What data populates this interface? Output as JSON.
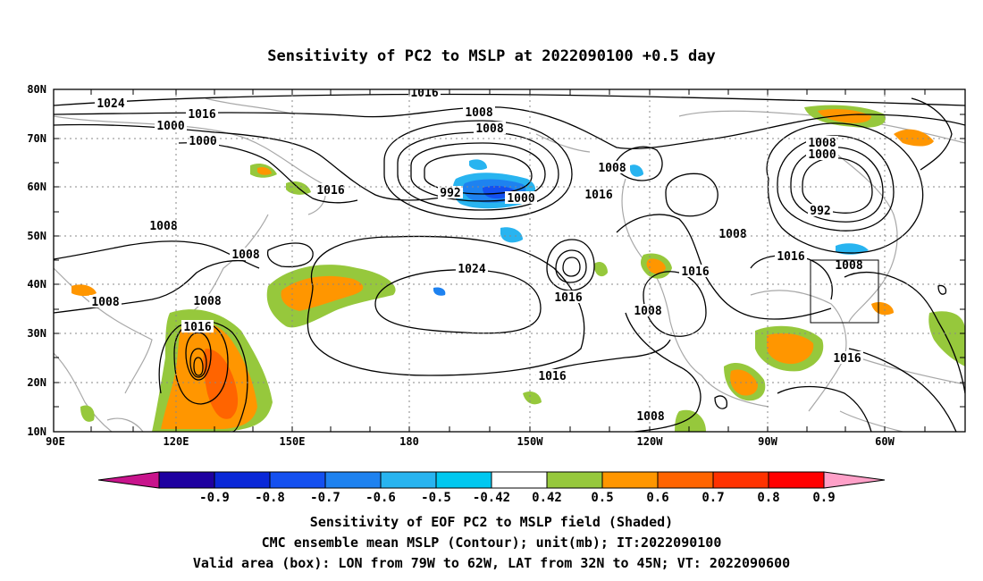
{
  "title": "Sensitivity of PC2 to MSLP at 2022090100 +0.5 day",
  "map": {
    "lon_range": [
      "90E",
      "50W"
    ],
    "lat_range": [
      "10N",
      "80N"
    ],
    "lat_ticks": [
      "80N",
      "70N",
      "60N",
      "50N",
      "40N",
      "30N",
      "20N",
      "10N"
    ],
    "lon_ticks": [
      "90E",
      "120E",
      "150E",
      "180",
      "150W",
      "120W",
      "90W",
      "60W"
    ],
    "contour_labels": [
      {
        "text": "1016"
      },
      {
        "text": "1024"
      },
      {
        "text": "1016"
      },
      {
        "text": "1008"
      },
      {
        "text": "1000"
      },
      {
        "text": "1008"
      },
      {
        "text": "1000"
      },
      {
        "text": "992"
      },
      {
        "text": "1000"
      },
      {
        "text": "1008"
      },
      {
        "text": "1016"
      },
      {
        "text": "1016"
      },
      {
        "text": "1008"
      },
      {
        "text": "1008"
      },
      {
        "text": "1000"
      },
      {
        "text": "992"
      },
      {
        "text": "1008"
      },
      {
        "text": "1008"
      },
      {
        "text": "1024"
      },
      {
        "text": "1016"
      },
      {
        "text": "1016"
      },
      {
        "text": "1016"
      },
      {
        "text": "1008"
      },
      {
        "text": "1008"
      },
      {
        "text": "1008"
      },
      {
        "text": "1016"
      },
      {
        "text": "1008"
      },
      {
        "text": "1016"
      },
      {
        "text": "1016"
      },
      {
        "text": "1008"
      },
      {
        "text": "1008"
      }
    ],
    "valid_area_box": {
      "lon": [
        "79W",
        "62W"
      ],
      "lat": [
        "32N",
        "45N"
      ]
    }
  },
  "colorbar": {
    "labels": [
      "-0.9",
      "-0.8",
      "-0.7",
      "-0.6",
      "-0.5",
      "-0.42",
      "0.42",
      "0.5",
      "0.6",
      "0.7",
      "0.8",
      "0.9"
    ],
    "colors": [
      "#1e00a0",
      "#0a28d8",
      "#1450f0",
      "#1e82f0",
      "#28b4f0",
      "#00c8f0",
      "#ffffff",
      "#96c83c",
      "#ff9600",
      "#ff6400",
      "#ff3200",
      "#ff0000"
    ],
    "low_end_color": "#c8148c",
    "high_end_color": "#ffa0c8"
  },
  "captions": [
    "Sensitivity of EOF PC2 to MSLP field (Shaded)",
    "CMC ensemble mean MSLP (Contour); unit(mb); IT:2022090100",
    "Valid area (box): LON from 79W to 62W, LAT from 32N to 45N; VT: 2022090600"
  ]
}
